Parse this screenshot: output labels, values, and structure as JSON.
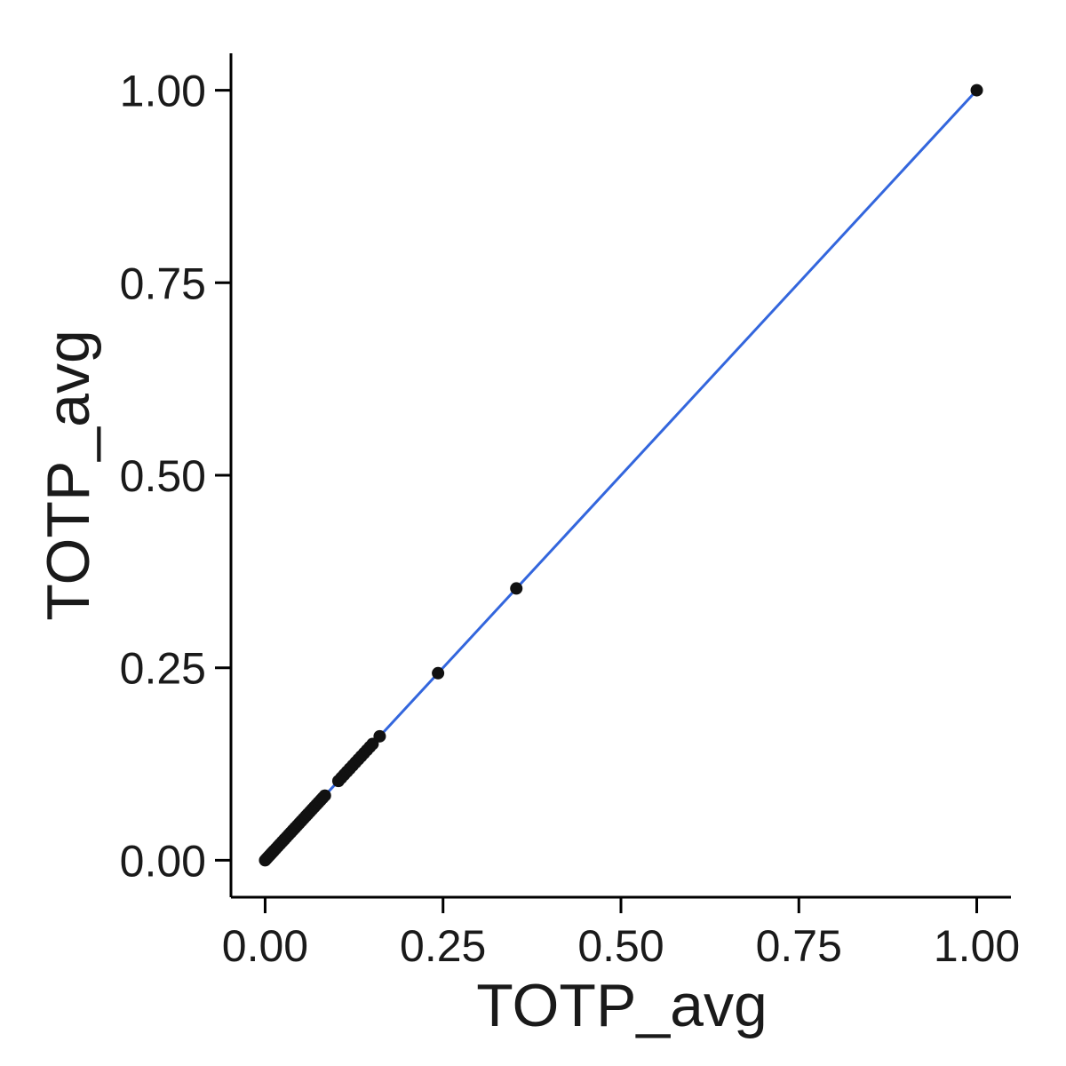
{
  "chart_data": {
    "type": "scatter",
    "title": "",
    "xlabel": "TOTP_avg",
    "ylabel": "TOTP_avg",
    "xlim": [
      -0.048,
      1.048
    ],
    "ylim": [
      -0.048,
      1.048
    ],
    "x_ticks": [
      0.0,
      0.25,
      0.5,
      0.75,
      1.0
    ],
    "x_tick_labels": [
      "0.00",
      "0.25",
      "0.50",
      "0.75",
      "1.00"
    ],
    "y_ticks": [
      0.0,
      0.25,
      0.5,
      0.75,
      1.0
    ],
    "y_tick_labels": [
      "0.00",
      "0.25",
      "0.50",
      "0.75",
      "1.00"
    ],
    "grid": false,
    "legend": "none",
    "series": [
      {
        "x": [
          0.0,
          0.002,
          0.004,
          0.006,
          0.008,
          0.01,
          0.012,
          0.015,
          0.018,
          0.021,
          0.024,
          0.027,
          0.03,
          0.033,
          0.036,
          0.039,
          0.042,
          0.045,
          0.048,
          0.051,
          0.054,
          0.057,
          0.06,
          0.063,
          0.066,
          0.069,
          0.072,
          0.075,
          0.078,
          0.081,
          0.084,
          0.103,
          0.107,
          0.111,
          0.115,
          0.119,
          0.123,
          0.127,
          0.131,
          0.135,
          0.139,
          0.143,
          0.147,
          0.151,
          0.161,
          0.243,
          0.353,
          1.0
        ],
        "y": [
          0.0,
          0.002,
          0.004,
          0.006,
          0.008,
          0.01,
          0.012,
          0.015,
          0.018,
          0.021,
          0.024,
          0.027,
          0.03,
          0.033,
          0.036,
          0.039,
          0.042,
          0.045,
          0.048,
          0.051,
          0.054,
          0.057,
          0.06,
          0.063,
          0.066,
          0.069,
          0.072,
          0.075,
          0.078,
          0.081,
          0.084,
          0.103,
          0.107,
          0.111,
          0.115,
          0.119,
          0.123,
          0.127,
          0.131,
          0.135,
          0.139,
          0.143,
          0.147,
          0.151,
          0.161,
          0.243,
          0.353,
          1.0
        ]
      }
    ],
    "fit_line": {
      "x": [
        0.0,
        1.0
      ],
      "y": [
        0.0,
        1.0
      ]
    },
    "colors": {
      "points": "#111111",
      "fit_line": "#3366dd",
      "axis": "#000000"
    }
  }
}
